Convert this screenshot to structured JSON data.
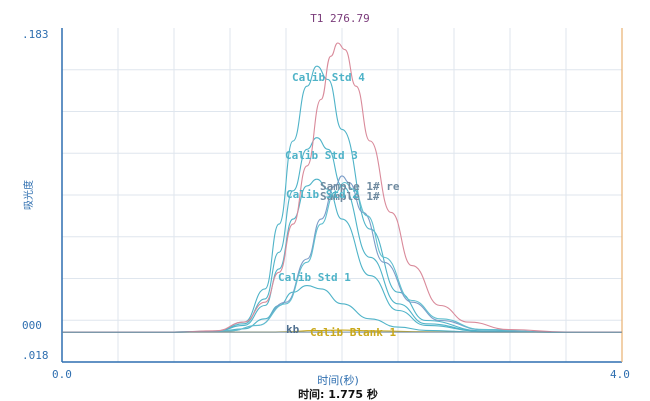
{
  "chart_data": {
    "type": "line",
    "title": "T1 276.79",
    "xlabel": "时间(秒)",
    "ylabel": "吸光度",
    "xlim": [
      0,
      4.0
    ],
    "ylim": [
      -0.018,
      0.183
    ],
    "x_tick_labels": [
      "0.0",
      "4.0"
    ],
    "y_tick_labels": [
      ".183",
      "000",
      ".018"
    ],
    "time_readout": "时间: 1.775 秒",
    "grid": true,
    "colors": {
      "axis": "#2f6fb0",
      "grid": "#dfe6ee",
      "right_border": "#e8b070"
    },
    "series": [
      {
        "name": "Calib Blank 1",
        "color": "#c9a81a",
        "x": [
          0.0,
          0.5,
          1.0,
          1.5,
          1.6,
          1.8,
          2.0,
          2.2,
          2.6,
          3.0,
          4.0
        ],
        "y": [
          0.0,
          0.0,
          0.0,
          0.0,
          0.0002,
          0.0009,
          0.0012,
          0.0008,
          0.0002,
          0.0,
          0.0
        ]
      },
      {
        "name": "Calib Std 1",
        "color": "#4fb3c8",
        "x": [
          0.0,
          0.8,
          1.1,
          1.3,
          1.45,
          1.55,
          1.65,
          1.75,
          1.85,
          2.0,
          2.2,
          2.4,
          2.6,
          3.0,
          3.5,
          4.0
        ],
        "y": [
          0.0,
          0.0,
          0.0003,
          0.002,
          0.008,
          0.016,
          0.024,
          0.028,
          0.026,
          0.017,
          0.008,
          0.003,
          0.001,
          0.0,
          0.0,
          0.0
        ]
      },
      {
        "name": "Calib Std 2",
        "color": "#4fb3c8",
        "x": [
          0.0,
          0.8,
          1.1,
          1.3,
          1.45,
          1.55,
          1.65,
          1.75,
          1.82,
          1.9,
          2.0,
          2.2,
          2.4,
          2.6,
          3.0,
          3.5,
          4.0
        ],
        "y": [
          0.0,
          0.0,
          0.0005,
          0.004,
          0.016,
          0.038,
          0.068,
          0.088,
          0.092,
          0.086,
          0.068,
          0.034,
          0.013,
          0.004,
          0.0005,
          0.0,
          0.0
        ]
      },
      {
        "name": "Calib Std 3",
        "color": "#4fb3c8",
        "x": [
          0.0,
          0.8,
          1.1,
          1.3,
          1.45,
          1.55,
          1.65,
          1.75,
          1.82,
          1.9,
          2.0,
          2.2,
          2.4,
          2.6,
          3.0,
          3.5,
          4.0
        ],
        "y": [
          0.0,
          0.0,
          0.0005,
          0.005,
          0.02,
          0.048,
          0.085,
          0.11,
          0.117,
          0.11,
          0.088,
          0.045,
          0.017,
          0.005,
          0.0006,
          0.0,
          0.0
        ]
      },
      {
        "name": "Calib Std 4",
        "color": "#4fb3c8",
        "x": [
          0.0,
          0.8,
          1.1,
          1.3,
          1.45,
          1.55,
          1.65,
          1.75,
          1.82,
          1.9,
          2.0,
          2.2,
          2.4,
          2.6,
          3.0,
          3.5,
          4.0
        ],
        "y": [
          0.0,
          0.0,
          0.0006,
          0.006,
          0.026,
          0.065,
          0.115,
          0.148,
          0.16,
          0.152,
          0.122,
          0.062,
          0.024,
          0.007,
          0.0008,
          0.0,
          0.0
        ]
      },
      {
        "name": "Sample 1# re",
        "color": "#7a9cc8",
        "x": [
          0.0,
          0.8,
          1.2,
          1.4,
          1.6,
          1.75,
          1.85,
          1.95,
          2.0,
          2.05,
          2.15,
          2.3,
          2.5,
          2.7,
          3.0,
          3.5,
          4.0
        ],
        "y": [
          0.0,
          0.0,
          0.0008,
          0.004,
          0.018,
          0.044,
          0.068,
          0.088,
          0.094,
          0.09,
          0.072,
          0.042,
          0.018,
          0.007,
          0.0015,
          0.0,
          0.0
        ]
      },
      {
        "name": "Sample 1#",
        "color": "#5fbfcf",
        "x": [
          0.0,
          0.8,
          1.2,
          1.4,
          1.6,
          1.75,
          1.85,
          1.95,
          2.02,
          2.08,
          2.18,
          2.3,
          2.5,
          2.7,
          3.0,
          3.5,
          4.0
        ],
        "y": [
          0.0,
          0.0,
          0.0008,
          0.004,
          0.017,
          0.042,
          0.065,
          0.084,
          0.09,
          0.086,
          0.07,
          0.045,
          0.019,
          0.008,
          0.0016,
          0.0,
          0.0
        ]
      },
      {
        "name": "T1",
        "color": "#d98a9a",
        "x": [
          0.0,
          0.8,
          1.1,
          1.3,
          1.45,
          1.55,
          1.65,
          1.75,
          1.85,
          1.92,
          1.97,
          2.02,
          2.1,
          2.2,
          2.35,
          2.5,
          2.7,
          2.9,
          3.2,
          3.6,
          4.0
        ],
        "y": [
          0.0,
          0.0,
          0.0008,
          0.006,
          0.018,
          0.036,
          0.065,
          0.1,
          0.14,
          0.166,
          0.174,
          0.17,
          0.148,
          0.115,
          0.072,
          0.04,
          0.016,
          0.006,
          0.0015,
          0.0,
          0.0
        ]
      }
    ],
    "annotations": [
      {
        "text": "Calib Std 4",
        "color": "#4fb3c8"
      },
      {
        "text": "Calib Std 3",
        "color": "#4fb3c8"
      },
      {
        "text": "Sample 1# re",
        "color": "#6f8a9f"
      },
      {
        "text": "Sample 1#",
        "color": "#6f8a9f"
      },
      {
        "text": "Calib Std 2",
        "color": "#4fb3c8"
      },
      {
        "text": "Calib Std 1",
        "color": "#4fb3c8"
      },
      {
        "text": "kb",
        "color": "#4f6f8f"
      },
      {
        "text": "Calib Blank 1",
        "color": "#c9a81a"
      }
    ]
  }
}
